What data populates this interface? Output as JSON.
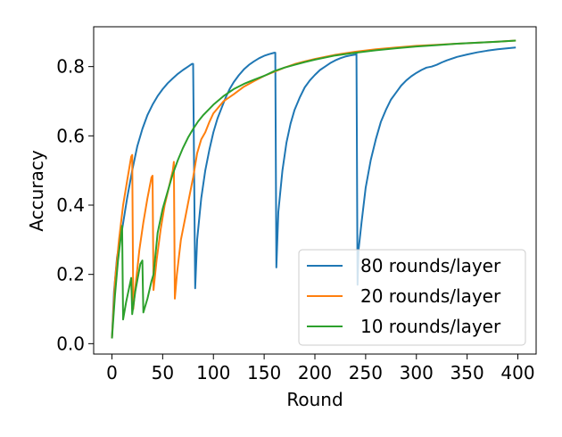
{
  "chart_data": {
    "type": "line",
    "title": "",
    "xlabel": "Round",
    "ylabel": "Accuracy",
    "xlim": [
      -18,
      418
    ],
    "ylim": [
      -0.03,
      0.915
    ],
    "xticks": [
      0,
      50,
      100,
      150,
      200,
      250,
      300,
      350,
      400
    ],
    "yticks": [
      0.0,
      0.2,
      0.4,
      0.6,
      0.8
    ],
    "ytick_labels": [
      "0.0",
      "0.2",
      "0.4",
      "0.6",
      "0.8"
    ],
    "grid": false,
    "legend_position": "lower-right",
    "series": [
      {
        "name": "80 rounds/layer",
        "color": "#1f77b4",
        "points": [
          [
            0,
            0.015
          ],
          [
            2,
            0.15
          ],
          [
            5,
            0.25
          ],
          [
            10,
            0.33
          ],
          [
            15,
            0.42
          ],
          [
            20,
            0.5
          ],
          [
            25,
            0.57
          ],
          [
            30,
            0.62
          ],
          [
            35,
            0.66
          ],
          [
            40,
            0.69
          ],
          [
            45,
            0.715
          ],
          [
            50,
            0.735
          ],
          [
            55,
            0.752
          ],
          [
            60,
            0.766
          ],
          [
            65,
            0.779
          ],
          [
            70,
            0.79
          ],
          [
            75,
            0.8
          ],
          [
            79,
            0.808
          ],
          [
            80,
            0.808
          ],
          [
            82,
            0.16
          ],
          [
            84,
            0.3
          ],
          [
            88,
            0.42
          ],
          [
            92,
            0.5
          ],
          [
            96,
            0.56
          ],
          [
            100,
            0.61
          ],
          [
            104,
            0.65
          ],
          [
            108,
            0.68
          ],
          [
            112,
            0.71
          ],
          [
            116,
            0.735
          ],
          [
            120,
            0.755
          ],
          [
            125,
            0.775
          ],
          [
            130,
            0.792
          ],
          [
            135,
            0.805
          ],
          [
            140,
            0.815
          ],
          [
            145,
            0.824
          ],
          [
            150,
            0.831
          ],
          [
            155,
            0.836
          ],
          [
            160,
            0.84
          ],
          [
            161,
            0.84
          ],
          [
            162,
            0.22
          ],
          [
            164,
            0.38
          ],
          [
            168,
            0.5
          ],
          [
            172,
            0.58
          ],
          [
            176,
            0.635
          ],
          [
            180,
            0.675
          ],
          [
            185,
            0.71
          ],
          [
            190,
            0.74
          ],
          [
            195,
            0.76
          ],
          [
            200,
            0.776
          ],
          [
            205,
            0.79
          ],
          [
            210,
            0.8
          ],
          [
            215,
            0.81
          ],
          [
            220,
            0.818
          ],
          [
            225,
            0.824
          ],
          [
            230,
            0.829
          ],
          [
            235,
            0.832
          ],
          [
            240,
            0.835
          ],
          [
            241,
            0.84
          ],
          [
            242,
            0.17
          ],
          [
            243,
            0.27
          ],
          [
            246,
            0.35
          ],
          [
            250,
            0.45
          ],
          [
            255,
            0.53
          ],
          [
            260,
            0.59
          ],
          [
            265,
            0.64
          ],
          [
            270,
            0.675
          ],
          [
            275,
            0.705
          ],
          [
            280,
            0.725
          ],
          [
            285,
            0.745
          ],
          [
            290,
            0.76
          ],
          [
            295,
            0.772
          ],
          [
            300,
            0.782
          ],
          [
            305,
            0.79
          ],
          [
            310,
            0.797
          ],
          [
            315,
            0.8
          ],
          [
            320,
            0.805
          ],
          [
            325,
            0.812
          ],
          [
            330,
            0.818
          ],
          [
            340,
            0.828
          ],
          [
            350,
            0.835
          ],
          [
            360,
            0.841
          ],
          [
            370,
            0.846
          ],
          [
            380,
            0.85
          ],
          [
            390,
            0.853
          ],
          [
            398,
            0.855
          ]
        ]
      },
      {
        "name": "20 rounds/layer",
        "color": "#ff7f0e",
        "points": [
          [
            0,
            0.015
          ],
          [
            3,
            0.18
          ],
          [
            7,
            0.3
          ],
          [
            11,
            0.4
          ],
          [
            15,
            0.47
          ],
          [
            19,
            0.54
          ],
          [
            20,
            0.545
          ],
          [
            21,
            0.1
          ],
          [
            23,
            0.16
          ],
          [
            27,
            0.27
          ],
          [
            31,
            0.35
          ],
          [
            35,
            0.42
          ],
          [
            39,
            0.48
          ],
          [
            40,
            0.485
          ],
          [
            41,
            0.155
          ],
          [
            44,
            0.24
          ],
          [
            48,
            0.33
          ],
          [
            52,
            0.4
          ],
          [
            56,
            0.45
          ],
          [
            60,
            0.5
          ],
          [
            61,
            0.525
          ],
          [
            62,
            0.13
          ],
          [
            64,
            0.2
          ],
          [
            68,
            0.3
          ],
          [
            72,
            0.36
          ],
          [
            76,
            0.42
          ],
          [
            80,
            0.48
          ],
          [
            84,
            0.55
          ],
          [
            88,
            0.59
          ],
          [
            92,
            0.61
          ],
          [
            96,
            0.64
          ],
          [
            100,
            0.665
          ],
          [
            110,
            0.7
          ],
          [
            120,
            0.72
          ],
          [
            130,
            0.742
          ],
          [
            140,
            0.758
          ],
          [
            150,
            0.773
          ],
          [
            160,
            0.785
          ],
          [
            170,
            0.797
          ],
          [
            180,
            0.807
          ],
          [
            190,
            0.815
          ],
          [
            200,
            0.822
          ],
          [
            220,
            0.834
          ],
          [
            240,
            0.843
          ],
          [
            260,
            0.85
          ],
          [
            280,
            0.855
          ],
          [
            300,
            0.86
          ],
          [
            320,
            0.863
          ],
          [
            340,
            0.866
          ],
          [
            360,
            0.869
          ],
          [
            380,
            0.872
          ],
          [
            398,
            0.875
          ]
        ]
      },
      {
        "name": "10 rounds/layer",
        "color": "#2ca02c",
        "points": [
          [
            0,
            0.015
          ],
          [
            3,
            0.14
          ],
          [
            6,
            0.24
          ],
          [
            10,
            0.34
          ],
          [
            11,
            0.07
          ],
          [
            14,
            0.12
          ],
          [
            19,
            0.19
          ],
          [
            20,
            0.085
          ],
          [
            23,
            0.15
          ],
          [
            28,
            0.23
          ],
          [
            30,
            0.24
          ],
          [
            31,
            0.09
          ],
          [
            35,
            0.13
          ],
          [
            39,
            0.18
          ],
          [
            41,
            0.2
          ],
          [
            45,
            0.32
          ],
          [
            50,
            0.39
          ],
          [
            55,
            0.44
          ],
          [
            60,
            0.49
          ],
          [
            65,
            0.53
          ],
          [
            70,
            0.565
          ],
          [
            75,
            0.595
          ],
          [
            80,
            0.62
          ],
          [
            85,
            0.642
          ],
          [
            90,
            0.66
          ],
          [
            95,
            0.675
          ],
          [
            100,
            0.69
          ],
          [
            110,
            0.715
          ],
          [
            120,
            0.735
          ],
          [
            130,
            0.75
          ],
          [
            140,
            0.762
          ],
          [
            150,
            0.773
          ],
          [
            160,
            0.787
          ],
          [
            170,
            0.797
          ],
          [
            180,
            0.805
          ],
          [
            190,
            0.813
          ],
          [
            200,
            0.82
          ],
          [
            220,
            0.832
          ],
          [
            240,
            0.84
          ],
          [
            260,
            0.847
          ],
          [
            280,
            0.853
          ],
          [
            300,
            0.858
          ],
          [
            320,
            0.862
          ],
          [
            340,
            0.866
          ],
          [
            360,
            0.869
          ],
          [
            380,
            0.872
          ],
          [
            398,
            0.875
          ]
        ]
      }
    ]
  }
}
